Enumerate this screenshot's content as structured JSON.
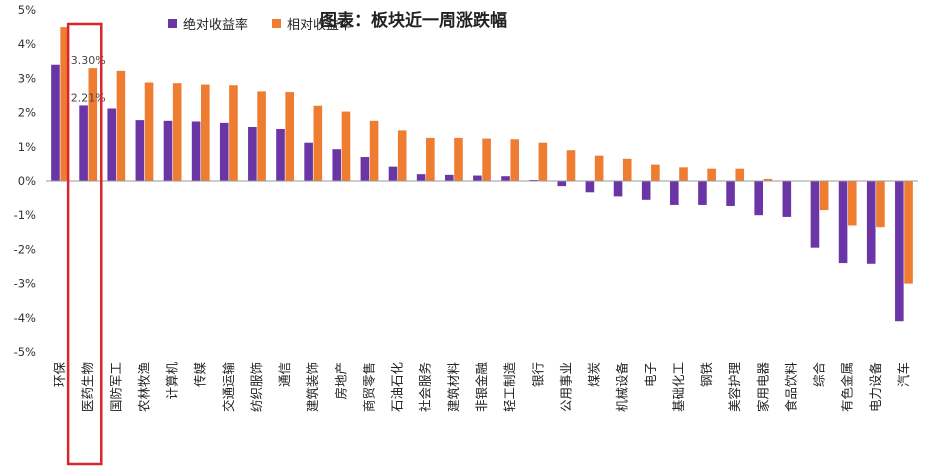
{
  "chart_data": {
    "type": "bar",
    "title": "图表：板块近一周涨跌幅",
    "categories": [
      "环保",
      "医药生物",
      "国防军工",
      "农林牧渔",
      "计算机",
      "传媒",
      "交通运输",
      "纺织服饰",
      "通信",
      "建筑装饰",
      "房地产",
      "商贸零售",
      "石油石化",
      "社会服务",
      "建筑材料",
      "非银金融",
      "轻工制造",
      "银行",
      "公用事业",
      "煤炭",
      "机械设备",
      "电子",
      "基础化工",
      "钢铁",
      "美容护理",
      "家用电器",
      "食品饮料",
      "综合",
      "有色金属",
      "电力设备",
      "汽车"
    ],
    "series": [
      {
        "name": "绝对收益率",
        "color": "#6a35a5",
        "values": [
          3.4,
          2.21,
          2.12,
          1.78,
          1.76,
          1.74,
          1.7,
          1.58,
          1.52,
          1.12,
          0.93,
          0.7,
          0.42,
          0.2,
          0.18,
          0.16,
          0.14,
          0.03,
          -0.15,
          -0.33,
          -0.45,
          -0.55,
          -0.7,
          -0.7,
          -0.73,
          -1.0,
          -1.05,
          -1.95,
          -2.4,
          -2.42,
          -4.1
        ]
      },
      {
        "name": "相对收益率",
        "color": "#ee7d31",
        "values": [
          4.5,
          3.3,
          3.22,
          2.88,
          2.86,
          2.82,
          2.8,
          2.62,
          2.6,
          2.2,
          2.03,
          1.76,
          1.48,
          1.26,
          1.26,
          1.24,
          1.22,
          1.12,
          0.9,
          0.74,
          0.65,
          0.48,
          0.4,
          0.36,
          0.36,
          0.06,
          0.0,
          -0.85,
          -1.3,
          -1.35,
          -3.0
        ]
      }
    ],
    "ylim": [
      -5,
      5
    ],
    "yticks": [
      "-5%",
      "-4%",
      "-3%",
      "-2%",
      "-1%",
      "0%",
      "1%",
      "2%",
      "3%",
      "4%",
      "5%"
    ],
    "data_labels": [
      {
        "category": "医药生物",
        "series": "相对收益率",
        "text": "3.30%"
      },
      {
        "category": "医药生物",
        "series": "绝对收益率",
        "text": "2.21%"
      }
    ],
    "highlight_category": "医药生物",
    "highlight_color": "#d9262a",
    "legend_position": "top-left",
    "grid": false
  }
}
